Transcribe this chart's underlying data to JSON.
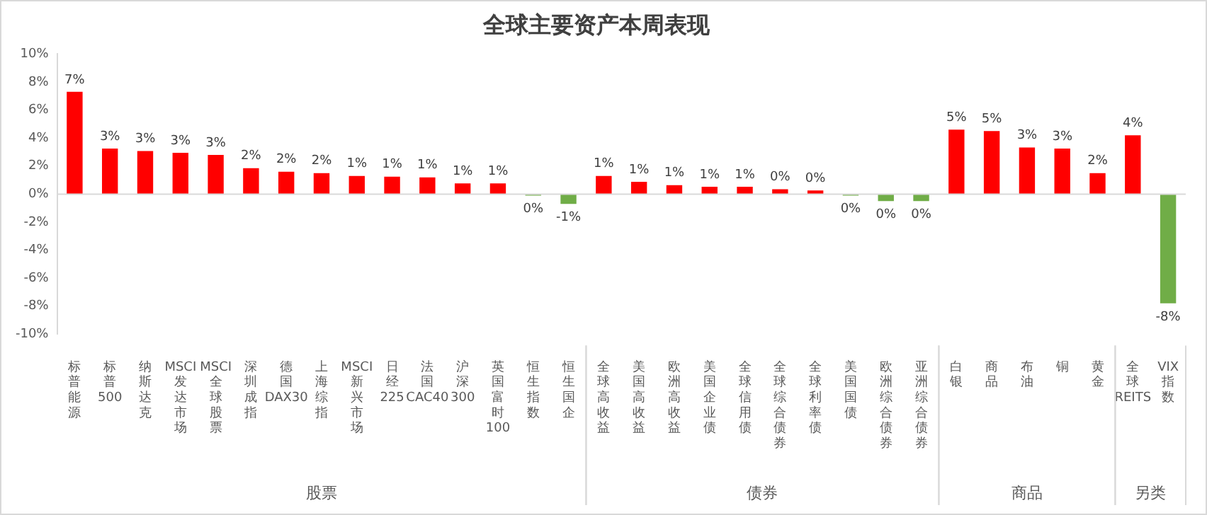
{
  "chart_data": {
    "type": "bar",
    "title": "全球主要资产本周表现",
    "categories": [
      "标普能源",
      "标普500",
      "纳斯达克",
      "MSCI发达市场",
      "MSCI全球股票",
      "深圳成指",
      "德国DAX30",
      "上海综指",
      "MSCI新兴市场",
      "日经225",
      "法国CAC40",
      "沪深300",
      "英国富时100",
      "恒生指数",
      "恒生国企",
      "全球高收益",
      "美国高收益",
      "欧洲高收益",
      "美国企业债",
      "全球信用债",
      "全球综合债券",
      "全球利率债",
      "美国国债",
      "欧洲综合债券",
      "亚洲综合债券",
      "白银",
      "商品",
      "布油",
      "铜",
      "黄金",
      "全球REITS",
      "VIX指数"
    ],
    "values": [
      7.3,
      3.25,
      3.07,
      2.95,
      2.8,
      1.85,
      1.6,
      1.5,
      1.3,
      1.25,
      1.2,
      0.76,
      0.76,
      -0.1,
      -0.7,
      1.3,
      0.88,
      0.64,
      0.53,
      0.53,
      0.35,
      0.26,
      -0.1,
      -0.5,
      -0.5,
      4.6,
      4.5,
      3.33,
      3.25,
      1.5,
      4.2,
      -7.8
    ],
    "colors": [
      "#ff0000",
      "#ff0000",
      "#ff0000",
      "#ff0000",
      "#ff0000",
      "#ff0000",
      "#ff0000",
      "#ff0000",
      "#ff0000",
      "#ff0000",
      "#ff0000",
      "#ff0000",
      "#ff0000",
      "#70ad47",
      "#70ad47",
      "#ff0000",
      "#ff0000",
      "#ff0000",
      "#ff0000",
      "#ff0000",
      "#ff0000",
      "#ff0000",
      "#70ad47",
      "#70ad47",
      "#70ad47",
      "#ff0000",
      "#ff0000",
      "#ff0000",
      "#ff0000",
      "#ff0000",
      "#ff0000",
      "#70ad47"
    ],
    "value_labels": [
      "7%",
      "3%",
      "3%",
      "3%",
      "3%",
      "2%",
      "2%",
      "2%",
      "1%",
      "1%",
      "1%",
      "1%",
      "1%",
      "0%",
      "-1%",
      "1%",
      "1%",
      "1%",
      "1%",
      "1%",
      "0%",
      "0%",
      "0%",
      "0%",
      "0%",
      "5%",
      "5%",
      "3%",
      "3%",
      "2%",
      "4%",
      "-8%"
    ],
    "ylim": [
      -10,
      10
    ],
    "yticks": [
      {
        "value": -10,
        "label": "-10%"
      },
      {
        "value": -8,
        "label": "-8%"
      },
      {
        "value": -6,
        "label": "-6%"
      },
      {
        "value": -4,
        "label": "-4%"
      },
      {
        "value": -2,
        "label": "-2%"
      },
      {
        "value": 0,
        "label": "0%"
      },
      {
        "value": 2,
        "label": "2%"
      },
      {
        "value": 4,
        "label": "4%"
      },
      {
        "value": 6,
        "label": "6%"
      },
      {
        "value": 8,
        "label": "8%"
      },
      {
        "value": 10,
        "label": "10%"
      }
    ],
    "annotations": [
      "股票",
      "债券",
      "商品",
      "另类"
    ],
    "ref_lines": [
      {
        "axis": "y",
        "value": 0,
        "color": "#d9d9d9"
      }
    ],
    "grid": false,
    "legend": false
  }
}
